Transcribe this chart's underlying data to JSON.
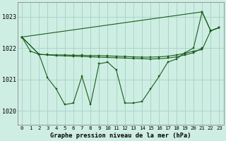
{
  "title": "Graphe pression niveau de la mer (hPa)",
  "background_color": "#ceeee4",
  "grid_color": "#aad4c8",
  "line_color": "#1a5c1a",
  "marker_color": "#1a5c1a",
  "xlim": [
    -0.5,
    23.5
  ],
  "ylim": [
    1019.55,
    1023.45
  ],
  "yticks": [
    1020,
    1021,
    1022,
    1023
  ],
  "xtick_labels": [
    "0",
    "1",
    "2",
    "3",
    "4",
    "5",
    "6",
    "7",
    "8",
    "9",
    "10",
    "11",
    "12",
    "13",
    "14",
    "15",
    "16",
    "17",
    "18",
    "19",
    "20",
    "21",
    "22",
    "23"
  ],
  "series_main": {
    "x": [
      0,
      1,
      2,
      3,
      4,
      5,
      6,
      7,
      8,
      9,
      10,
      11,
      12,
      13,
      14,
      15,
      16,
      17,
      18,
      19,
      20,
      21,
      22,
      23
    ],
    "y": [
      1022.35,
      1021.9,
      1021.8,
      1021.05,
      1020.7,
      1020.2,
      1020.25,
      1021.1,
      1020.2,
      1021.5,
      1021.55,
      1021.3,
      1020.25,
      1020.25,
      1020.3,
      1020.7,
      1021.1,
      1021.55,
      1021.65,
      1021.85,
      1022.0,
      1023.15,
      1022.55,
      1022.65
    ]
  },
  "series_flat1": {
    "x": [
      0,
      2,
      3,
      4,
      5,
      6,
      7,
      8,
      9,
      10,
      11,
      12,
      13,
      14,
      15,
      16,
      17,
      18,
      19,
      20,
      21
    ],
    "y": [
      1022.35,
      1021.8,
      1021.78,
      1021.76,
      1021.75,
      1021.74,
      1021.73,
      1021.72,
      1021.71,
      1021.7,
      1021.69,
      1021.68,
      1021.67,
      1021.66,
      1021.65,
      1021.66,
      1021.68,
      1021.72,
      1021.78,
      1021.85,
      1022.0
    ]
  },
  "series_flat2": {
    "x": [
      0,
      2,
      3,
      4,
      5,
      6,
      7,
      8,
      9,
      10,
      11,
      12,
      13,
      14,
      15,
      16,
      17,
      18,
      19,
      20,
      21,
      22,
      23
    ],
    "y": [
      1022.35,
      1021.8,
      1021.79,
      1021.78,
      1021.78,
      1021.77,
      1021.77,
      1021.76,
      1021.76,
      1021.75,
      1021.74,
      1021.73,
      1021.72,
      1021.71,
      1021.71,
      1021.72,
      1021.74,
      1021.78,
      1021.83,
      1021.9,
      1021.95,
      1022.55,
      1022.65
    ]
  },
  "series_upper": {
    "x": [
      0,
      21,
      22,
      23
    ],
    "y": [
      1022.35,
      1023.15,
      1022.55,
      1022.65
    ]
  }
}
